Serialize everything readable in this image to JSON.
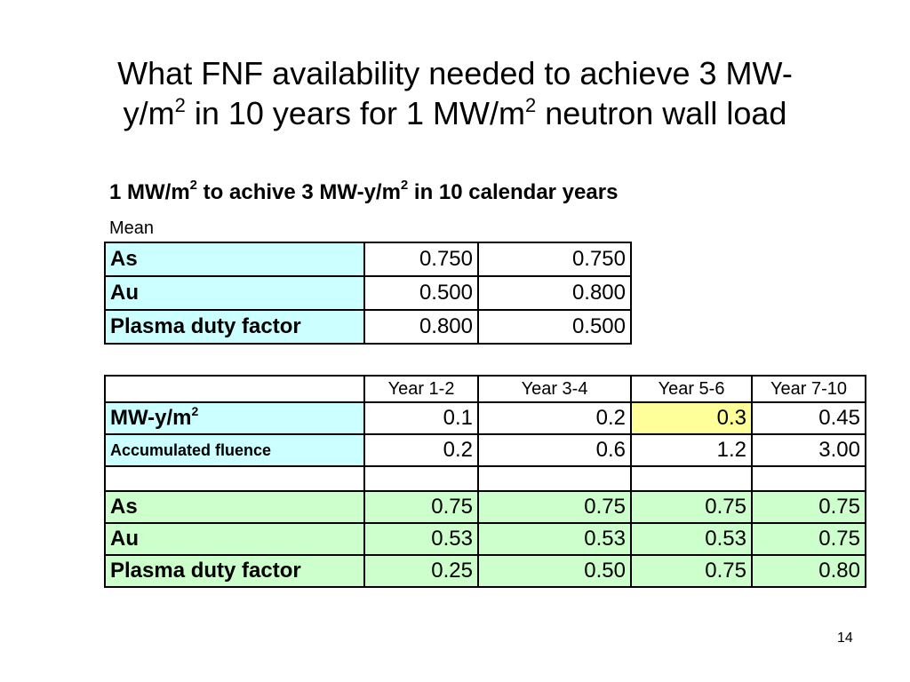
{
  "title": {
    "line1": "What FNF availability needed to achieve 3 MW-",
    "line2_a": "y/m",
    "line2_sup1": "2",
    "line2_b": " in 10 years for 1 MW/m",
    "line2_sup2": "2",
    "line2_c": " neutron wall load"
  },
  "subtitle": {
    "part1": "1 MW/m",
    "sup1": "2",
    "part2": " to achive 3 MW-y/m",
    "sup2": "2",
    "part3": " in 10 calendar years"
  },
  "mean_label": "Mean",
  "table1": {
    "rows": [
      {
        "label": "As",
        "values": [
          "0.750",
          "0.750"
        ]
      },
      {
        "label": "Au",
        "values": [
          "0.500",
          "0.800"
        ]
      },
      {
        "label": "Plasma duty factor",
        "values": [
          "0.800",
          "0.500"
        ]
      }
    ]
  },
  "table2": {
    "headers": [
      "",
      "Year 1-2",
      "Year 3-4",
      "Year 5-6",
      "Year 7-10"
    ],
    "mwy": {
      "label": "MW-y/m",
      "sup": "2",
      "values": [
        "0.1",
        "0.2",
        "0.3",
        "0.45"
      ]
    },
    "fluence": {
      "label": "Accumulated fluence",
      "values": [
        "0.2",
        "0.6",
        "1.2",
        "3.00"
      ]
    },
    "rows": [
      {
        "label": "As",
        "values": [
          "0.75",
          "0.75",
          "0.75",
          "0.75"
        ]
      },
      {
        "label": "Au",
        "values": [
          "0.53",
          "0.53",
          "0.53",
          "0.75"
        ]
      },
      {
        "label": "Plasma duty factor",
        "values": [
          "0.25",
          "0.50",
          "0.75",
          "0.80"
        ]
      }
    ]
  },
  "colors": {
    "label_bg": "#ccffff",
    "availability_bg": "#ccffcc",
    "highlight": "#ffff99"
  },
  "page_number": "14"
}
